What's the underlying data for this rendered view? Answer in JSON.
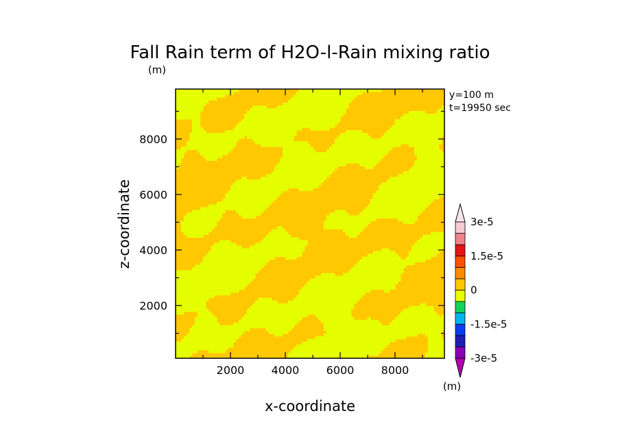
{
  "chart_data": {
    "type": "heatmap",
    "title": "Fall Rain term of H2O-l-Rain mixing ratio",
    "title_unit": "(m)",
    "xlabel": "x-coordinate",
    "ylabel": "z-coordinate",
    "xlim": [
      0,
      9800
    ],
    "ylim": [
      100,
      9800
    ],
    "x_ticks": [
      2000,
      4000,
      6000,
      8000
    ],
    "y_ticks": [
      2000,
      4000,
      6000,
      8000
    ],
    "annotations": [
      "y=100 m",
      "t=19950 sec"
    ],
    "field_description": "banded field of small positive and negative values around 0",
    "colorbar": {
      "unit": "(m)",
      "labels": [
        "3e-5",
        "1.5e-5",
        "0",
        "-1.5e-5",
        "-3e-5"
      ],
      "label_values": [
        3e-05,
        1.5e-05,
        0,
        -1.5e-05,
        -3e-05
      ],
      "levels": [
        -3e-05,
        -2.5e-05,
        -2e-05,
        -1.5e-05,
        -1e-05,
        -5e-06,
        0,
        5e-06,
        1e-05,
        1.5e-05,
        2e-05,
        2.5e-05,
        3e-05
      ],
      "colors": [
        "#8c00b4",
        "#1e1eb4",
        "#0a3cf0",
        "#00b4f0",
        "#14d25a",
        "#e6ff00",
        "#ffc800",
        "#ff8c00",
        "#ff5000",
        "#e61414",
        "#f0828c",
        "#f5c8d2"
      ],
      "under_color": "#b400b4",
      "over_color": "#fae6eb"
    },
    "dominant_colors": {
      "positive_small": "#ffc800",
      "negative_small": "#e6ff00"
    }
  }
}
